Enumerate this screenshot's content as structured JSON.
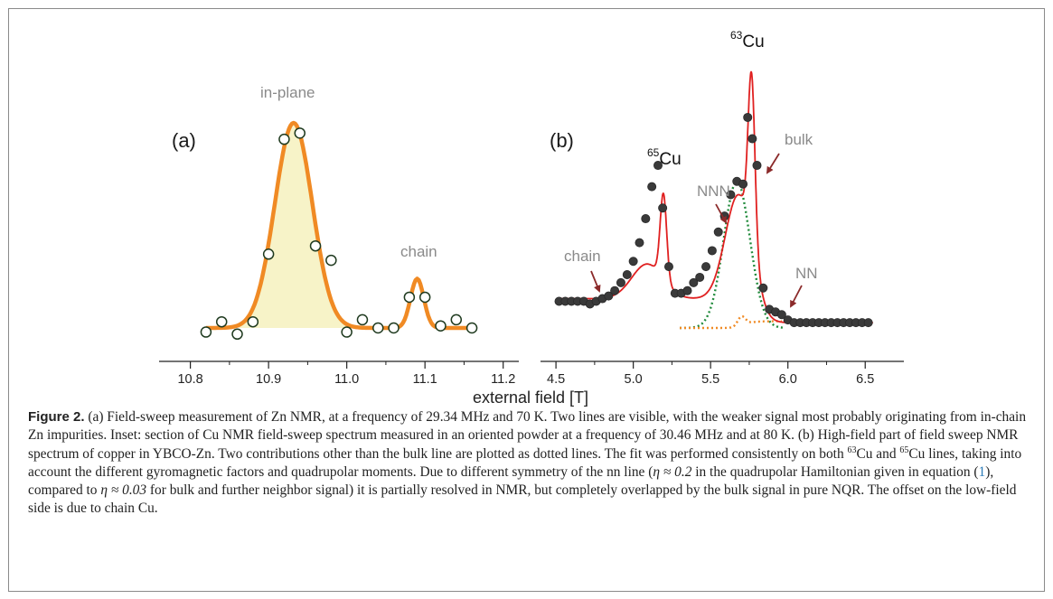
{
  "figure": {
    "panel_a": {
      "letter": "(a)",
      "annotations": {
        "main_peak": "in-plane",
        "secondary_peak": "chain"
      },
      "colors": {
        "fit": "#f08a24",
        "fill": "#f7f3c8",
        "marker_edge": "#1f3a1f"
      }
    },
    "panel_b": {
      "letter": "(b)",
      "annotations": {
        "cu63_sup": "63",
        "cu63": "Cu",
        "cu65_sup": "65",
        "cu65": "Cu",
        "bulk": "bulk",
        "nnn": "NNN",
        "nn": "NN",
        "chain": "chain"
      },
      "colors": {
        "fit": "#e02020",
        "points": "#3a3a3a",
        "nnn_line": "#1f8a3a",
        "nn_line": "#f08a24",
        "arrow": "#8b2a2a"
      }
    },
    "x_axis_title": "external field [T]"
  },
  "chart_data": [
    {
      "type": "scatter",
      "panel": "a",
      "x_ticks": [
        "10.8",
        "10.9",
        "11.0",
        "11.1",
        "11.2"
      ],
      "xlim": [
        10.76,
        11.22
      ],
      "ylim": [
        0,
        1.05
      ],
      "series": [
        {
          "x": [
            10.82,
            10.84,
            10.86,
            10.88,
            10.9,
            10.92,
            10.94,
            10.96,
            10.98,
            11.0,
            11.02,
            11.04,
            11.06,
            11.08,
            11.1,
            11.12,
            11.14,
            11.16
          ],
          "values": [
            -0.02,
            0.03,
            -0.03,
            0.03,
            0.36,
            0.92,
            0.95,
            0.4,
            0.33,
            -0.02,
            0.04,
            0.0,
            0.0,
            0.15,
            0.15,
            0.01,
            0.04,
            0.0
          ]
        }
      ],
      "fit": [
        {
          "center": 10.932,
          "amplitude": 1.0,
          "sigma": 0.024
        },
        {
          "center": 11.09,
          "amplitude": 0.24,
          "sigma": 0.0085
        }
      ]
    },
    {
      "type": "scatter",
      "panel": "b",
      "x_ticks": [
        "4.5",
        "5.0",
        "5.5",
        "6.0",
        "6.5"
      ],
      "xlim": [
        4.4,
        6.75
      ],
      "ylim": [
        0,
        1.05
      ],
      "series": [
        {
          "x": [
            4.52,
            4.56,
            4.6,
            4.64,
            4.68,
            4.72,
            4.76,
            4.8,
            4.84,
            4.88,
            4.92,
            4.96,
            5.0,
            5.04,
            5.08,
            5.12,
            5.16,
            5.19,
            5.23,
            5.27,
            5.31,
            5.35,
            5.39,
            5.43,
            5.47,
            5.51,
            5.55,
            5.59,
            5.63,
            5.67,
            5.71,
            5.74,
            5.77,
            5.8,
            5.84,
            5.88,
            5.92,
            5.96,
            6.0,
            6.04,
            6.08,
            6.12,
            6.16,
            6.2,
            6.24,
            6.28,
            6.32,
            6.36,
            6.4,
            6.44,
            6.48,
            6.52
          ],
          "values": [
            0.1,
            0.1,
            0.1,
            0.1,
            0.1,
            0.09,
            0.1,
            0.11,
            0.12,
            0.14,
            0.17,
            0.2,
            0.25,
            0.32,
            0.41,
            0.53,
            0.61,
            0.45,
            0.23,
            0.13,
            0.13,
            0.14,
            0.17,
            0.19,
            0.23,
            0.29,
            0.36,
            0.42,
            0.5,
            0.55,
            0.54,
            0.79,
            0.71,
            0.61,
            0.15,
            0.07,
            0.06,
            0.05,
            0.03,
            0.02,
            0.02,
            0.02,
            0.02,
            0.02,
            0.02,
            0.02,
            0.02,
            0.02,
            0.02,
            0.02,
            0.02,
            0.02
          ]
        }
      ]
    }
  ],
  "caption": {
    "label": "Figure 2.",
    "part1": " (a) Field-sweep measurement of Zn NMR, at a frequency of 29.34 MHz and 70 K. Two lines are visible, with the weaker signal most probably originating from in-chain Zn impurities. Inset: section of Cu NMR field-sweep spectrum measured in an oriented powder at a frequency of 30.46 MHz and at 80 K. (b) High-field part of field sweep NMR spectrum of copper in YBCO-Zn. Two contributions other than the bulk line are plotted as dotted lines. The fit was performed consistently on both ",
    "sup63": "63",
    "part2": "Cu and ",
    "sup65": "65",
    "part3": "Cu lines, taking into account the different gyromagnetic factors and quadrupolar moments. Due to different symmetry of the nn line (",
    "eta1": "η ≈ 0.2",
    "part4": " in the quadrupolar Hamiltonian given in equation (",
    "ref": "1",
    "part5": "), compared to ",
    "eta2": "η ≈ 0.03",
    "part6": " for bulk and further neighbor signal) it is partially resolved in NMR, but completely overlapped by the bulk signal in pure NQR. The offset on the low-field side is due to chain Cu."
  }
}
